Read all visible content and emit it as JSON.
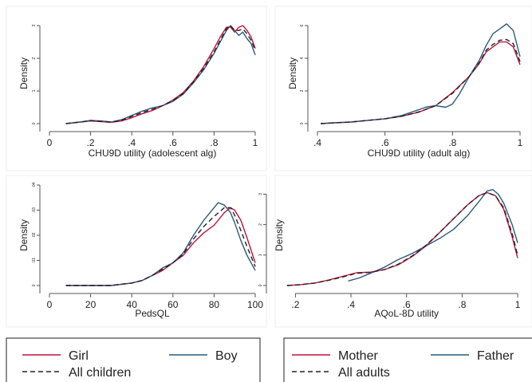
{
  "chart_data": [
    {
      "type": "line",
      "xlabel": "CHU9D utility (adolescent alg)",
      "ylabel": "Density",
      "xlim": [
        0,
        1
      ],
      "ylim": [
        0,
        3.1
      ],
      "xticks": [
        0,
        0.2,
        0.4,
        0.6,
        0.8,
        1
      ],
      "xtick_labels": [
        "0",
        ".2",
        ".4",
        ".6",
        ".8",
        "1"
      ],
      "yticks": [
        0,
        1,
        2,
        3
      ],
      "ytick_labels": [
        "0",
        "1",
        "2",
        "3"
      ],
      "series": [
        {
          "name": "Girl",
          "color": "#c0143c",
          "dash": "solid",
          "x": [
            0.08,
            0.15,
            0.2,
            0.25,
            0.3,
            0.35,
            0.4,
            0.45,
            0.5,
            0.55,
            0.6,
            0.65,
            0.7,
            0.75,
            0.8,
            0.83,
            0.86,
            0.88,
            0.9,
            0.92,
            0.94,
            0.96,
            0.98,
            1.0
          ],
          "y": [
            0,
            0.05,
            0.08,
            0.06,
            0.04,
            0.08,
            0.18,
            0.3,
            0.4,
            0.55,
            0.72,
            0.95,
            1.3,
            1.75,
            2.3,
            2.65,
            2.95,
            2.95,
            2.8,
            2.95,
            3.0,
            2.85,
            2.65,
            2.3
          ]
        },
        {
          "name": "Boy",
          "color": "#2d5a7a",
          "dash": "solid",
          "x": [
            0.08,
            0.15,
            0.2,
            0.25,
            0.3,
            0.35,
            0.4,
            0.45,
            0.5,
            0.55,
            0.6,
            0.65,
            0.7,
            0.75,
            0.8,
            0.83,
            0.86,
            0.88,
            0.9,
            0.92,
            0.94,
            0.96,
            0.98,
            1.0
          ],
          "y": [
            0,
            0.05,
            0.1,
            0.08,
            0.05,
            0.12,
            0.25,
            0.38,
            0.48,
            0.55,
            0.68,
            0.9,
            1.25,
            1.65,
            2.15,
            2.5,
            2.85,
            3.0,
            2.85,
            2.7,
            2.8,
            2.6,
            2.45,
            2.1
          ]
        },
        {
          "name": "All children",
          "color": "#222222",
          "dash": "dashed",
          "x": [
            0.08,
            0.15,
            0.2,
            0.25,
            0.3,
            0.35,
            0.4,
            0.45,
            0.5,
            0.55,
            0.6,
            0.65,
            0.7,
            0.75,
            0.8,
            0.83,
            0.86,
            0.88,
            0.9,
            0.92,
            0.94,
            0.96,
            0.98,
            1.0
          ],
          "y": [
            0,
            0.05,
            0.09,
            0.07,
            0.05,
            0.1,
            0.22,
            0.34,
            0.44,
            0.55,
            0.7,
            0.92,
            1.28,
            1.7,
            2.2,
            2.55,
            2.9,
            3.0,
            2.85,
            2.85,
            2.9,
            2.75,
            2.55,
            2.25
          ]
        }
      ]
    },
    {
      "type": "line",
      "xlabel": "CHU9D utility (adult alg)",
      "ylabel": "Density",
      "xlim": [
        0.4,
        1
      ],
      "ylim": [
        0,
        6.2
      ],
      "xticks": [
        0.4,
        0.6,
        0.8,
        1
      ],
      "xtick_labels": [
        ".4",
        ".6",
        ".8",
        "1"
      ],
      "yticks": [
        0,
        2,
        4,
        6
      ],
      "ytick_labels": [
        "0",
        "2",
        "4",
        "6"
      ],
      "series": [
        {
          "name": "Mother",
          "color": "#c0143c",
          "dash": "solid",
          "x": [
            0.41,
            0.45,
            0.5,
            0.55,
            0.6,
            0.65,
            0.7,
            0.75,
            0.8,
            0.85,
            0.88,
            0.9,
            0.92,
            0.94,
            0.96,
            0.98,
            1.0
          ],
          "y": [
            0,
            0.05,
            0.1,
            0.2,
            0.3,
            0.45,
            0.7,
            1.1,
            1.9,
            2.9,
            3.7,
            4.4,
            4.7,
            5.0,
            5.0,
            4.7,
            3.6
          ]
        },
        {
          "name": "Father",
          "color": "#2d5a7a",
          "dash": "solid",
          "x": [
            0.41,
            0.45,
            0.5,
            0.55,
            0.6,
            0.65,
            0.7,
            0.72,
            0.75,
            0.78,
            0.8,
            0.82,
            0.85,
            0.88,
            0.9,
            0.92,
            0.94,
            0.96,
            0.98,
            1.0
          ],
          "y": [
            0,
            0.05,
            0.1,
            0.2,
            0.3,
            0.5,
            0.85,
            1.0,
            1.1,
            1.0,
            1.2,
            1.8,
            2.9,
            3.9,
            4.8,
            5.5,
            5.8,
            6.1,
            5.7,
            4.1
          ]
        },
        {
          "name": "All adults",
          "color": "#222222",
          "dash": "dashed",
          "x": [
            0.41,
            0.45,
            0.5,
            0.55,
            0.6,
            0.65,
            0.7,
            0.75,
            0.8,
            0.85,
            0.88,
            0.9,
            0.92,
            0.94,
            0.96,
            0.98,
            1.0
          ],
          "y": [
            0,
            0.05,
            0.1,
            0.2,
            0.3,
            0.45,
            0.72,
            1.1,
            1.85,
            2.9,
            3.75,
            4.5,
            4.85,
            5.1,
            5.15,
            4.9,
            3.8
          ]
        }
      ]
    },
    {
      "type": "line",
      "xlabel": "PedsQL",
      "ylabel": "Density",
      "xlim": [
        0,
        100
      ],
      "ylim": [
        0,
        0.04
      ],
      "xticks": [
        0,
        20,
        40,
        60,
        80,
        100
      ],
      "xtick_labels": [
        "0",
        "20",
        "40",
        "60",
        "80",
        "100"
      ],
      "yticks": [
        0,
        0.01,
        0.02,
        0.03,
        0.04
      ],
      "ytick_labels": [
        "0",
        ".01",
        ".02",
        ".03",
        ".04"
      ],
      "series": [
        {
          "name": "Girl",
          "color": "#c0143c",
          "dash": "solid",
          "x": [
            8,
            20,
            30,
            35,
            40,
            45,
            50,
            55,
            60,
            65,
            70,
            75,
            80,
            85,
            88,
            90,
            93,
            96,
            100
          ],
          "y": [
            0,
            0,
            0,
            0.0005,
            0.001,
            0.002,
            0.004,
            0.006,
            0.009,
            0.012,
            0.017,
            0.021,
            0.024,
            0.029,
            0.031,
            0.03,
            0.026,
            0.019,
            0.009
          ]
        },
        {
          "name": "Boy",
          "color": "#2d5a7a",
          "dash": "solid",
          "x": [
            8,
            20,
            30,
            35,
            40,
            45,
            50,
            55,
            60,
            65,
            70,
            75,
            80,
            82,
            85,
            88,
            90,
            93,
            96,
            100
          ],
          "y": [
            0,
            0,
            0,
            0.0005,
            0.001,
            0.002,
            0.004,
            0.007,
            0.009,
            0.013,
            0.02,
            0.026,
            0.031,
            0.033,
            0.032,
            0.029,
            0.025,
            0.018,
            0.012,
            0.006
          ]
        },
        {
          "name": "All children",
          "color": "#222222",
          "dash": "dashed",
          "x": [
            8,
            20,
            30,
            35,
            40,
            45,
            50,
            55,
            60,
            65,
            70,
            75,
            80,
            85,
            88,
            90,
            93,
            96,
            100
          ],
          "y": [
            0,
            0,
            0,
            0.0005,
            0.001,
            0.002,
            0.004,
            0.0065,
            0.009,
            0.0125,
            0.0185,
            0.0235,
            0.0275,
            0.031,
            0.031,
            0.028,
            0.022,
            0.0155,
            0.0075
          ]
        }
      ]
    },
    {
      "type": "line",
      "xlabel": "AQoL-8D utility",
      "ylabel": "Density",
      "xlim": [
        0.13,
        1.02
      ],
      "ylim": [
        0,
        3.3
      ],
      "xticks": [
        0.2,
        0.4,
        0.6,
        0.8,
        1
      ],
      "xtick_labels": [
        ".2",
        ".4",
        ".6",
        ".8",
        "1"
      ],
      "yticks": [
        0,
        1,
        2,
        3
      ],
      "ytick_labels": [
        "0",
        "1",
        "2",
        "3"
      ],
      "series": [
        {
          "name": "Mother",
          "color": "#c0143c",
          "dash": "solid",
          "x": [
            0.17,
            0.22,
            0.27,
            0.32,
            0.37,
            0.42,
            0.47,
            0.52,
            0.57,
            0.62,
            0.67,
            0.72,
            0.77,
            0.82,
            0.86,
            0.89,
            0.92,
            0.95,
            0.98,
            1.0
          ],
          "y": [
            0,
            0.03,
            0.08,
            0.18,
            0.3,
            0.42,
            0.44,
            0.52,
            0.68,
            0.95,
            1.3,
            1.75,
            2.2,
            2.65,
            2.95,
            3.05,
            2.95,
            2.5,
            1.6,
            0.9
          ]
        },
        {
          "name": "Father",
          "color": "#2d5a7a",
          "dash": "solid",
          "x": [
            0.39,
            0.43,
            0.47,
            0.52,
            0.57,
            0.62,
            0.67,
            0.72,
            0.77,
            0.82,
            0.86,
            0.89,
            0.91,
            0.93,
            0.95,
            0.98,
            1.0
          ],
          "y": [
            0.15,
            0.25,
            0.4,
            0.6,
            0.85,
            1.05,
            1.3,
            1.55,
            1.85,
            2.3,
            2.75,
            3.1,
            3.15,
            3.0,
            2.7,
            2.0,
            1.4
          ]
        },
        {
          "name": "All adults",
          "color": "#222222",
          "dash": "dashed",
          "x": [
            0.17,
            0.22,
            0.27,
            0.32,
            0.37,
            0.42,
            0.47,
            0.52,
            0.57,
            0.62,
            0.67,
            0.72,
            0.77,
            0.82,
            0.86,
            0.89,
            0.92,
            0.95,
            0.98,
            1.0
          ],
          "y": [
            0,
            0.03,
            0.08,
            0.17,
            0.28,
            0.4,
            0.43,
            0.52,
            0.7,
            0.97,
            1.32,
            1.75,
            2.2,
            2.65,
            2.95,
            3.05,
            2.95,
            2.55,
            1.7,
            1.0
          ]
        }
      ]
    }
  ],
  "legends": [
    {
      "entries": [
        {
          "label": "Girl",
          "color": "#c0143c",
          "dash": "solid"
        },
        {
          "label": "Boy",
          "color": "#2d5a7a",
          "dash": "solid"
        },
        {
          "label": "All children",
          "color": "#222222",
          "dash": "dashed"
        }
      ]
    },
    {
      "entries": [
        {
          "label": "Mother",
          "color": "#c0143c",
          "dash": "solid"
        },
        {
          "label": "Father",
          "color": "#2d5a7a",
          "dash": "solid"
        },
        {
          "label": "All adults",
          "color": "#222222",
          "dash": "dashed"
        }
      ]
    }
  ]
}
